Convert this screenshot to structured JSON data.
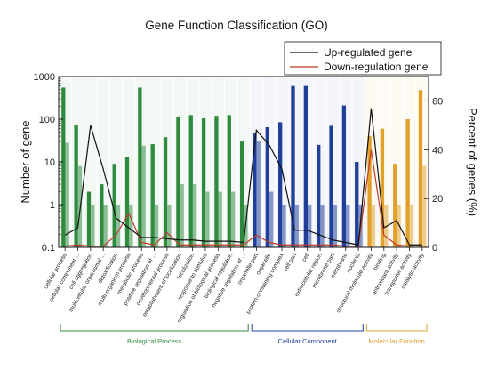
{
  "chart_data": {
    "type": "bar",
    "title": "Gene Function Classification (GO)",
    "ylabel": "Number of gene",
    "y2label": "Percent of genes (%)",
    "yscale": "log",
    "ylim": [
      0.1,
      1000
    ],
    "y2lim": [
      0,
      70
    ],
    "yticks": [
      "0.1",
      "1",
      "10",
      "100",
      "1000"
    ],
    "y2ticks": [
      "0",
      "20",
      "40",
      "60"
    ],
    "categories": [
      "cellular process",
      "cellular component ...",
      "cell aggregation",
      "multicellular organismal ...",
      "detoxification",
      "multi-organism process",
      "metabolic process",
      "positive regulation of ...",
      "developmental process",
      "establishment of localization",
      "localization",
      "response to stimulus",
      "regulation of biological process",
      "biological regulation",
      "negative regulation of ...",
      "organelle part",
      "organelle",
      "protein-containing complex",
      "cell part",
      "cell",
      "extracellular region",
      "membrane part",
      "membrane",
      "nucleoid",
      "structural molecule activity",
      "binding",
      "antioxidant activity",
      "transporter activity",
      "catalytic activity"
    ],
    "groups": [
      {
        "name": "Biological Process",
        "start": 0,
        "end": 14,
        "color": "#2e8b3e"
      },
      {
        "name": "Cellular Component",
        "start": 15,
        "end": 23,
        "color": "#1f3f9a"
      },
      {
        "name": "Molecular Function",
        "start": 24,
        "end": 28,
        "color": "#e0a02a"
      }
    ],
    "series": [
      {
        "name": "Up-regulated gene",
        "type": "bar",
        "values": [
          550,
          75,
          2,
          3,
          9,
          13,
          550,
          26,
          38,
          115,
          125,
          105,
          120,
          125,
          30,
          48,
          65,
          85,
          600,
          600,
          25,
          70,
          210,
          10,
          40,
          60,
          9,
          100,
          480
        ]
      },
      {
        "name": "Down-regulation gene",
        "type": "bar",
        "values": [
          28,
          8,
          1,
          1,
          1,
          1,
          24,
          1,
          1,
          3,
          3,
          2,
          2,
          2,
          1,
          30,
          2,
          1,
          1,
          1,
          1,
          1,
          1,
          1,
          1,
          1,
          1,
          1,
          8
        ]
      },
      {
        "name": "Up-regulated gene",
        "type": "line",
        "axis": "right",
        "values": [
          5,
          8,
          50,
          32,
          12,
          8,
          4,
          4,
          3.5,
          3,
          3,
          2.5,
          2.5,
          2.5,
          2,
          48,
          42,
          32,
          7,
          7,
          5,
          3,
          2,
          1,
          57,
          8,
          11,
          1,
          1
        ]
      },
      {
        "name": "Down-regulation gene",
        "type": "line",
        "axis": "right",
        "values": [
          0.5,
          1,
          0.5,
          0.5,
          5,
          14,
          2,
          1,
          6,
          1,
          1,
          1,
          1,
          1,
          1,
          5,
          2,
          1,
          1,
          1,
          1,
          1,
          0.5,
          0.5,
          40,
          5,
          1,
          0.5,
          1
        ]
      }
    ],
    "legend": {
      "position": "top-right",
      "entries": [
        {
          "label": "Up-regulated gene",
          "color": "#111111"
        },
        {
          "label": "Down-regulation gene",
          "color": "#c0392b"
        }
      ]
    },
    "colors": {
      "up_line": "#111111",
      "down_line": "#c0392b"
    }
  }
}
